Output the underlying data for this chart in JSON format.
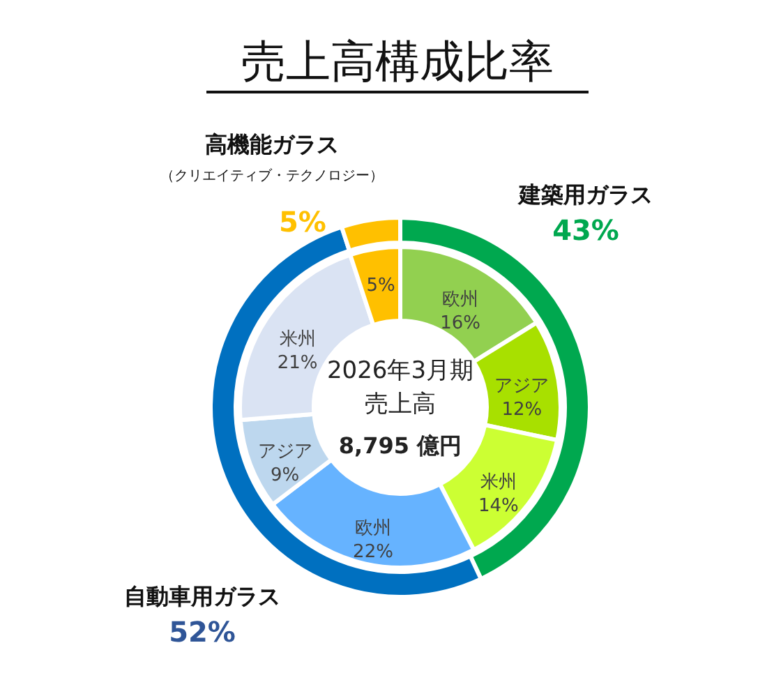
{
  "chart_data": [
    {
      "type": "donut",
      "title": "売上高構成比率",
      "categories": [
        "建築用ガラス",
        "自動車用ガラス",
        "高機能ガラス"
      ],
      "values": [
        43,
        52,
        5
      ],
      "colors": [
        "#00a84f",
        "#0070c0",
        "#ffc000"
      ],
      "value_labels": [
        "43%",
        "52%",
        "5%"
      ],
      "annotations": [
        "（クリエイティブ・テクノロジー）"
      ]
    },
    {
      "type": "donut",
      "categories": [
        "欧州",
        "アジア",
        "米州",
        "欧州",
        "アジア",
        "米州",
        null
      ],
      "values": [
        16,
        12,
        14,
        22,
        9,
        21,
        5
      ],
      "colors": [
        "#92d050",
        "#a8e000",
        "#ccff33",
        "#66b3ff",
        "#bdd7ee",
        "#dae3f3",
        "#ffc000"
      ],
      "value_labels": [
        "16%",
        "12%",
        "14%",
        "22%",
        "9%",
        "21%",
        "5%"
      ],
      "annotations": [
        "2026年3月期",
        "売上高",
        "8,795 億円"
      ]
    }
  ]
}
